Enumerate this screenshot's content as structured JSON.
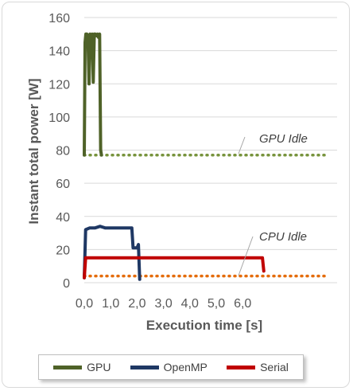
{
  "chart_data": {
    "type": "line",
    "xlabel": "Execution time [s]",
    "ylabel": "Instant total power [W]",
    "xlim": [
      0,
      7
    ],
    "ylim": [
      0,
      160
    ],
    "x_ticks": [
      "0,0",
      "1,0",
      "2,0",
      "3,0",
      "4,0",
      "5,0",
      "6,0"
    ],
    "y_ticks": [
      "0",
      "20",
      "40",
      "60",
      "80",
      "100",
      "120",
      "140",
      "160"
    ],
    "grid": "horizontal",
    "legend_position": "bottom",
    "series": [
      {
        "name": "GPU",
        "color": "#4f6228",
        "x": [
          0.0,
          0.03,
          0.06,
          0.1,
          0.14,
          0.18,
          0.22,
          0.26,
          0.3,
          0.34,
          0.38,
          0.42,
          0.46,
          0.5,
          0.54,
          0.58,
          0.62,
          0.65
        ],
        "y": [
          77,
          145,
          150,
          150,
          149,
          120,
          150,
          149,
          150,
          121,
          150,
          150,
          149,
          150,
          148,
          150,
          80,
          77
        ]
      },
      {
        "name": "OpenMP",
        "color": "#1f3864",
        "x": [
          0.0,
          0.05,
          0.2,
          0.4,
          0.6,
          0.8,
          1.0,
          1.2,
          1.4,
          1.6,
          1.8,
          1.85,
          1.95,
          2.0,
          2.05,
          2.1
        ],
        "y": [
          3,
          32,
          33,
          33,
          34,
          33,
          33,
          33,
          33,
          33,
          33,
          21,
          21,
          21,
          23,
          2
        ]
      },
      {
        "name": "Serial",
        "color": "#c00000",
        "x": [
          0.0,
          0.05,
          0.5,
          1.0,
          1.5,
          2.0,
          2.5,
          3.0,
          3.5,
          4.0,
          4.5,
          5.0,
          5.5,
          6.0,
          6.5,
          6.75,
          6.8
        ],
        "y": [
          3,
          15,
          15,
          15,
          15,
          15,
          15,
          15,
          15,
          15,
          15,
          15,
          15,
          15,
          15,
          15,
          7
        ]
      }
    ],
    "reference_lines": [
      {
        "label": "GPU Idle",
        "y": 77,
        "color": "#77933c",
        "style": "dotted"
      },
      {
        "label": "CPU Idle",
        "y": 4,
        "color": "#e46c0a",
        "style": "dotted"
      }
    ]
  }
}
